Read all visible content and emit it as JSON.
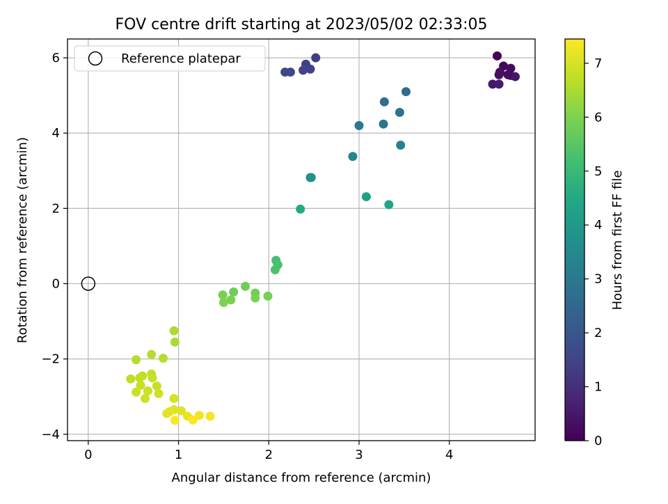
{
  "chart_data": {
    "type": "scatter",
    "title": "FOV centre drift starting at 2023/05/02 02:33:05",
    "xlabel": "Angular distance from reference (arcmin)",
    "ylabel": "Rotation from reference (arcmin)",
    "xlim": [
      -0.23,
      4.95
    ],
    "ylim": [
      -4.17,
      6.5
    ],
    "xticks": [
      0,
      1,
      2,
      3,
      4
    ],
    "yticks": [
      -4,
      -2,
      0,
      2,
      4,
      6
    ],
    "xtick_labels": [
      "0",
      "1",
      "2",
      "3",
      "4"
    ],
    "ytick_labels": [
      "−4",
      "−2",
      "0",
      "2",
      "4",
      "6"
    ],
    "grid": true,
    "legend": {
      "position": "top-left",
      "entries": [
        "Reference platepar"
      ]
    },
    "colorbar": {
      "label": "Hours from first FF file",
      "colormap": "viridis",
      "range": [
        0,
        7.45
      ],
      "ticks": [
        0,
        1,
        2,
        3,
        4,
        5,
        6,
        7
      ],
      "tick_labels": [
        "0",
        "1",
        "2",
        "3",
        "4",
        "5",
        "6",
        "7"
      ]
    },
    "reference_point": {
      "x": 0,
      "y": 0,
      "label": "Reference platepar"
    },
    "points": [
      {
        "x": 4.53,
        "y": 6.05,
        "h": 0.0
      },
      {
        "x": 4.6,
        "y": 5.78,
        "h": 0.1
      },
      {
        "x": 4.68,
        "y": 5.72,
        "h": 0.2
      },
      {
        "x": 4.56,
        "y": 5.62,
        "h": 0.3
      },
      {
        "x": 4.55,
        "y": 5.55,
        "h": 0.3
      },
      {
        "x": 4.68,
        "y": 5.53,
        "h": 0.4
      },
      {
        "x": 4.73,
        "y": 5.5,
        "h": 0.45
      },
      {
        "x": 4.48,
        "y": 5.3,
        "h": 0.5
      },
      {
        "x": 4.55,
        "y": 5.3,
        "h": 0.55
      },
      {
        "x": 4.65,
        "y": 5.55,
        "h": 0.25
      },
      {
        "x": 2.52,
        "y": 6.0,
        "h": 1.3
      },
      {
        "x": 2.41,
        "y": 5.83,
        "h": 1.4
      },
      {
        "x": 2.38,
        "y": 5.67,
        "h": 1.5
      },
      {
        "x": 2.46,
        "y": 5.7,
        "h": 1.45
      },
      {
        "x": 2.18,
        "y": 5.62,
        "h": 1.6
      },
      {
        "x": 2.24,
        "y": 5.62,
        "h": 1.6
      },
      {
        "x": 3.52,
        "y": 5.1,
        "h": 2.6
      },
      {
        "x": 3.28,
        "y": 4.83,
        "h": 2.7
      },
      {
        "x": 3.45,
        "y": 4.55,
        "h": 2.8
      },
      {
        "x": 3.27,
        "y": 4.24,
        "h": 2.9
      },
      {
        "x": 3.0,
        "y": 4.2,
        "h": 3.0
      },
      {
        "x": 3.46,
        "y": 3.68,
        "h": 3.3
      },
      {
        "x": 2.93,
        "y": 3.38,
        "h": 3.4
      },
      {
        "x": 2.46,
        "y": 2.82,
        "h": 3.7
      },
      {
        "x": 2.47,
        "y": 2.82,
        "h": 3.75
      },
      {
        "x": 3.08,
        "y": 2.31,
        "h": 4.2
      },
      {
        "x": 3.33,
        "y": 2.1,
        "h": 4.4
      },
      {
        "x": 2.35,
        "y": 1.98,
        "h": 4.5
      },
      {
        "x": 2.08,
        "y": 0.62,
        "h": 5.2
      },
      {
        "x": 2.1,
        "y": 0.5,
        "h": 5.25
      },
      {
        "x": 2.07,
        "y": 0.37,
        "h": 5.3
      },
      {
        "x": 1.74,
        "y": -0.07,
        "h": 5.8
      },
      {
        "x": 1.61,
        "y": -0.22,
        "h": 5.8
      },
      {
        "x": 1.85,
        "y": -0.25,
        "h": 5.85
      },
      {
        "x": 1.49,
        "y": -0.3,
        "h": 5.9
      },
      {
        "x": 1.99,
        "y": -0.33,
        "h": 5.9
      },
      {
        "x": 1.85,
        "y": -0.38,
        "h": 5.95
      },
      {
        "x": 1.58,
        "y": -0.43,
        "h": 5.95
      },
      {
        "x": 1.5,
        "y": -0.5,
        "h": 6.0
      },
      {
        "x": 0.95,
        "y": -1.25,
        "h": 6.5
      },
      {
        "x": 0.96,
        "y": -1.55,
        "h": 6.5
      },
      {
        "x": 0.7,
        "y": -1.88,
        "h": 6.6
      },
      {
        "x": 0.83,
        "y": -1.98,
        "h": 6.6
      },
      {
        "x": 0.53,
        "y": -2.02,
        "h": 6.6
      },
      {
        "x": 0.47,
        "y": -2.53,
        "h": 6.7
      },
      {
        "x": 0.57,
        "y": -2.5,
        "h": 6.7
      },
      {
        "x": 0.6,
        "y": -2.45,
        "h": 6.75
      },
      {
        "x": 0.7,
        "y": -2.4,
        "h": 6.75
      },
      {
        "x": 0.71,
        "y": -2.5,
        "h": 6.8
      },
      {
        "x": 0.58,
        "y": -2.7,
        "h": 6.8
      },
      {
        "x": 0.76,
        "y": -2.72,
        "h": 6.8
      },
      {
        "x": 0.66,
        "y": -2.85,
        "h": 6.85
      },
      {
        "x": 0.53,
        "y": -2.88,
        "h": 6.85
      },
      {
        "x": 0.78,
        "y": -2.92,
        "h": 6.9
      },
      {
        "x": 0.63,
        "y": -3.05,
        "h": 6.9
      },
      {
        "x": 0.95,
        "y": -3.05,
        "h": 7.0
      },
      {
        "x": 0.95,
        "y": -3.35,
        "h": 7.1
      },
      {
        "x": 1.03,
        "y": -3.38,
        "h": 7.1
      },
      {
        "x": 0.9,
        "y": -3.4,
        "h": 7.15
      },
      {
        "x": 0.87,
        "y": -3.45,
        "h": 7.15
      },
      {
        "x": 1.1,
        "y": -3.52,
        "h": 7.2
      },
      {
        "x": 1.23,
        "y": -3.5,
        "h": 7.3
      },
      {
        "x": 1.35,
        "y": -3.52,
        "h": 7.35
      },
      {
        "x": 1.16,
        "y": -3.62,
        "h": 7.4
      },
      {
        "x": 0.96,
        "y": -3.63,
        "h": 7.45
      }
    ]
  }
}
